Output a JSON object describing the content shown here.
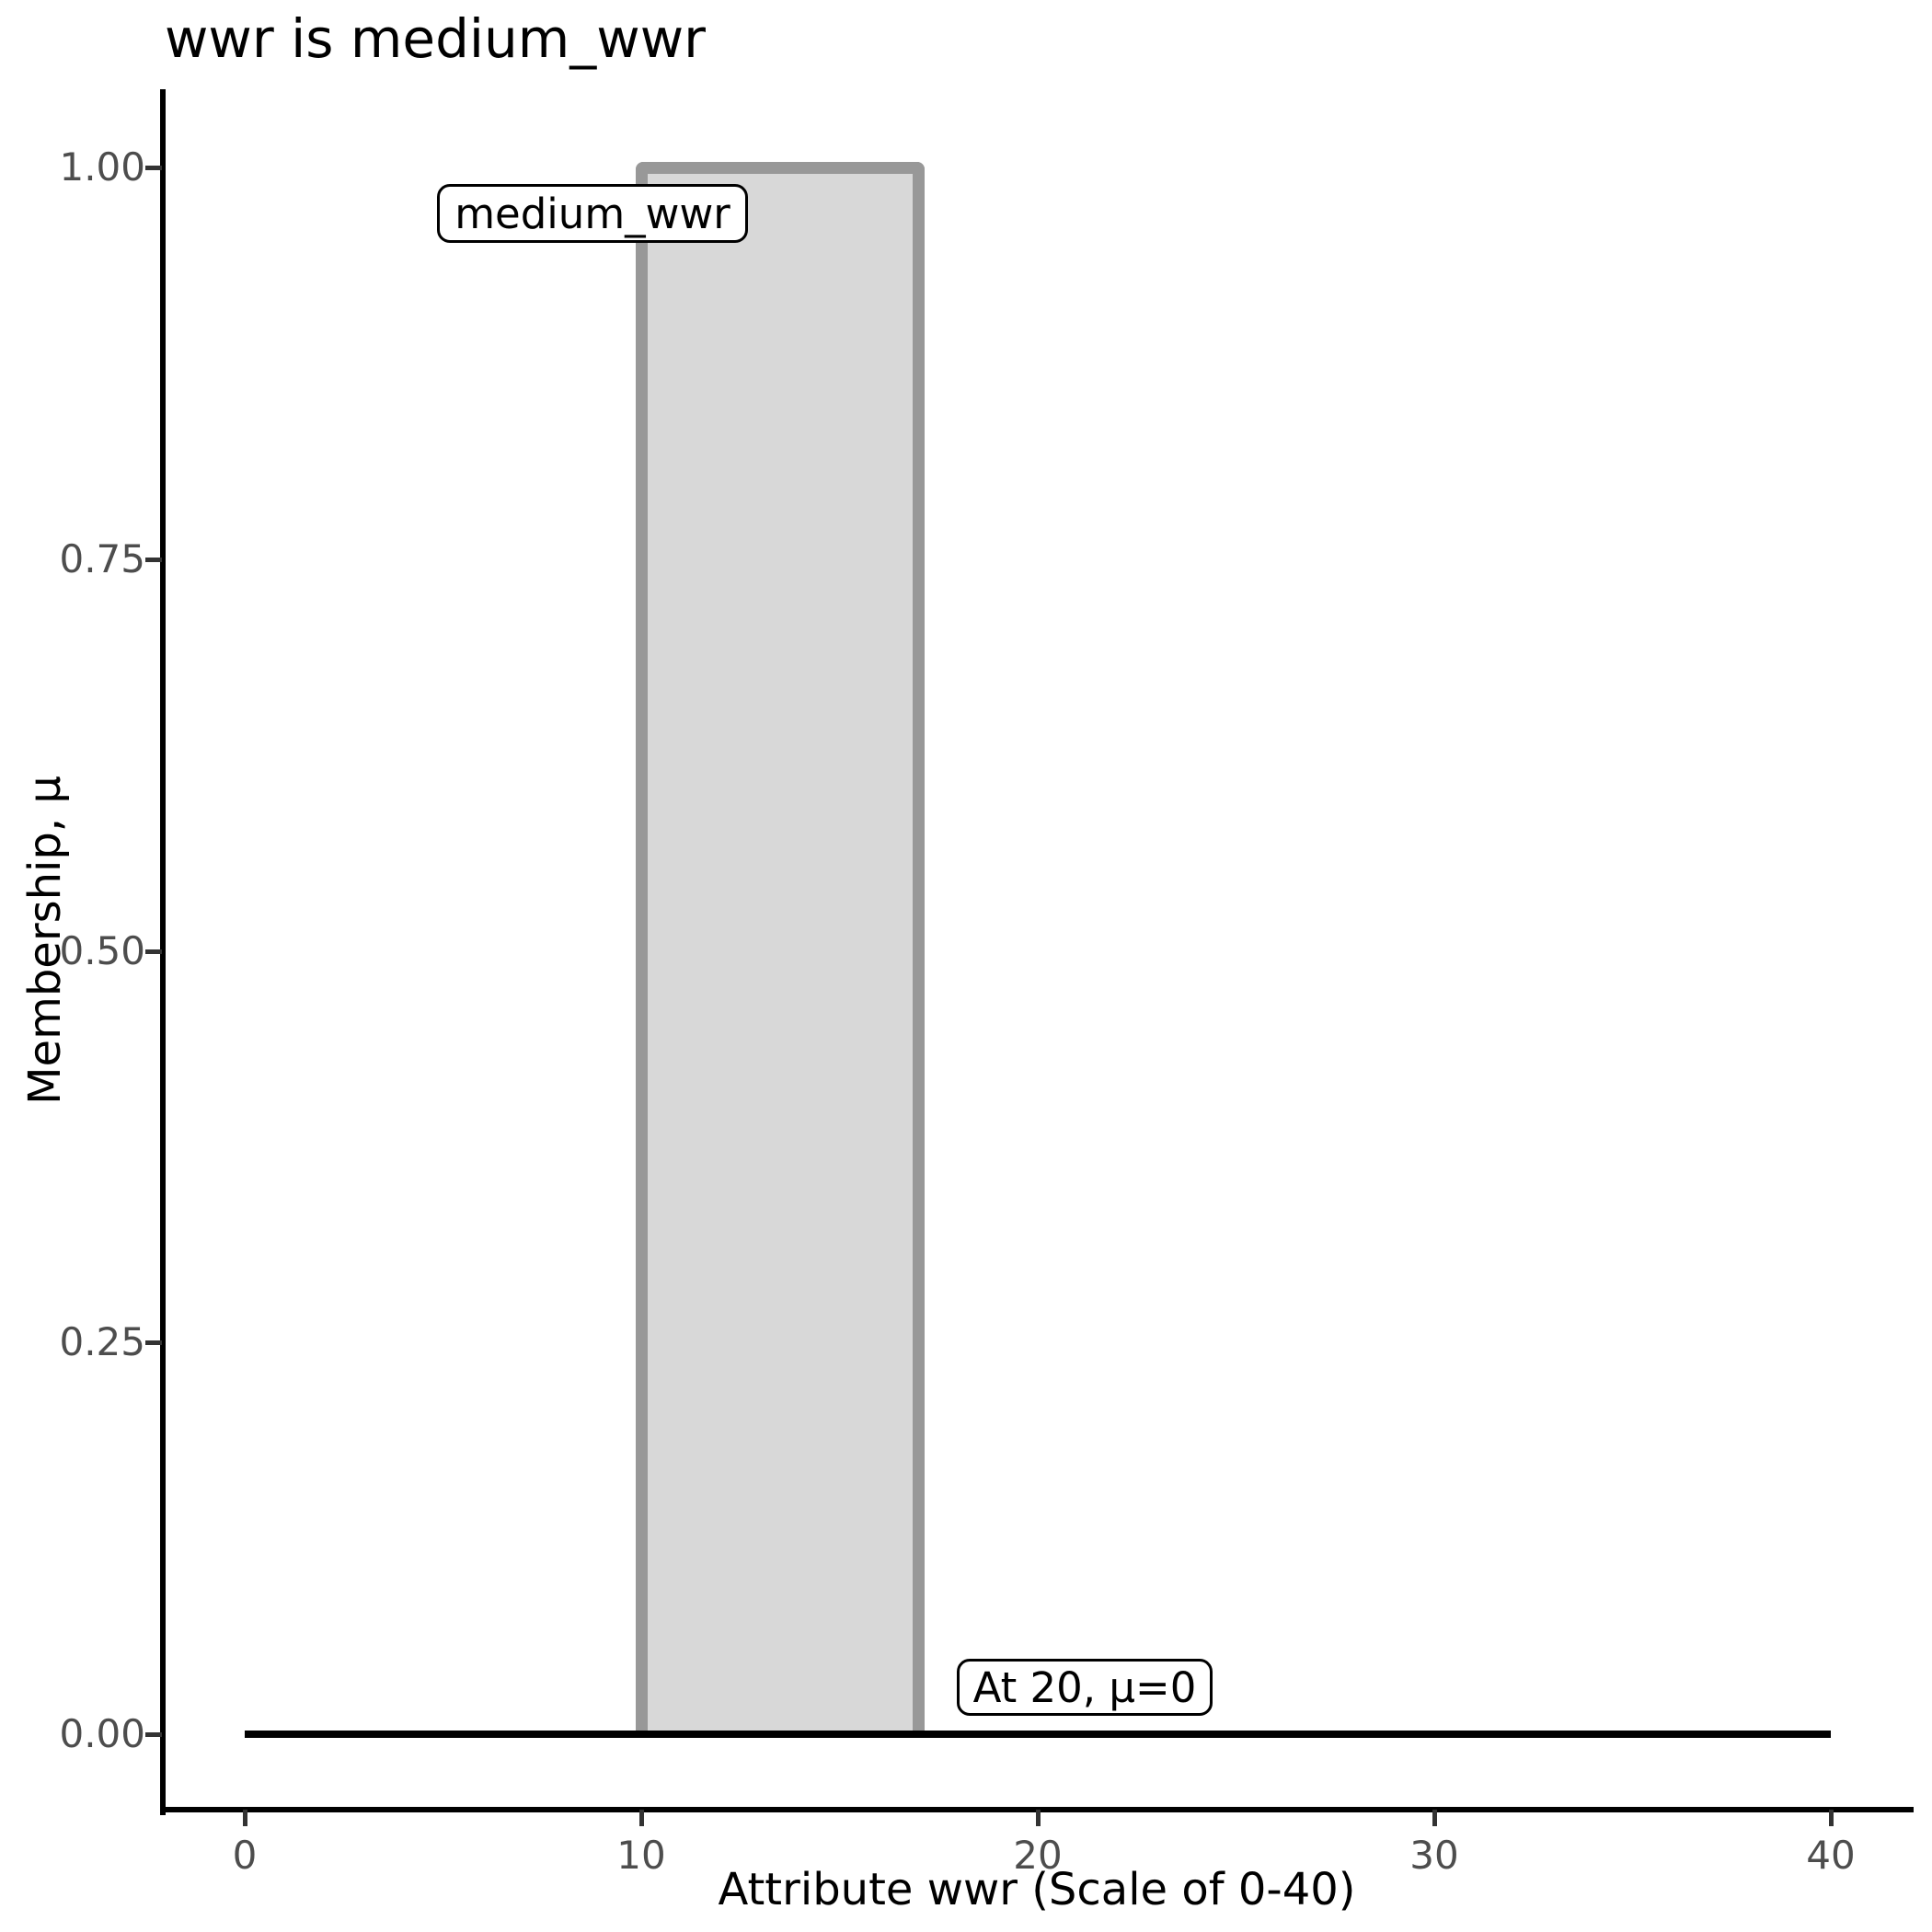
{
  "chart_data": {
    "type": "area",
    "title": "wwr is medium_wwr",
    "xlabel": "Attribute wwr (Scale of 0-40)",
    "ylabel": "Membership, μ",
    "xlim": [
      -2,
      42
    ],
    "ylim": [
      -0.05,
      1.05
    ],
    "grid": false,
    "legend": "none",
    "x_ticks": [
      0,
      10,
      20,
      30,
      40
    ],
    "y_ticks": [
      "0.00",
      "0.25",
      "0.50",
      "0.75",
      "1.00"
    ],
    "series": [
      {
        "name": "medium_wwr",
        "shape": "rectangle",
        "x_start": 10,
        "x_end": 17,
        "membership_inside": 1,
        "membership_outside": 0,
        "fill": "#d8d8d8",
        "stroke": "#989898"
      },
      {
        "name": "zero-membership-baseline",
        "shape": "line",
        "x_start": 0,
        "x_end": 40,
        "membership": 0,
        "stroke": "#000000"
      }
    ],
    "annotations": [
      {
        "label": "medium_wwr",
        "target": "set-name"
      },
      {
        "label": "At 20, μ=0",
        "target": "point",
        "x": 20,
        "mu": 0
      }
    ]
  },
  "colors": {
    "background": "#ffffff",
    "axis_line": "#000000",
    "tick_label": "#4d4d4d",
    "bar_fill": "#d8d8d8",
    "bar_border": "#989898",
    "baseline": "#000000",
    "annotation_border": "#000000"
  }
}
